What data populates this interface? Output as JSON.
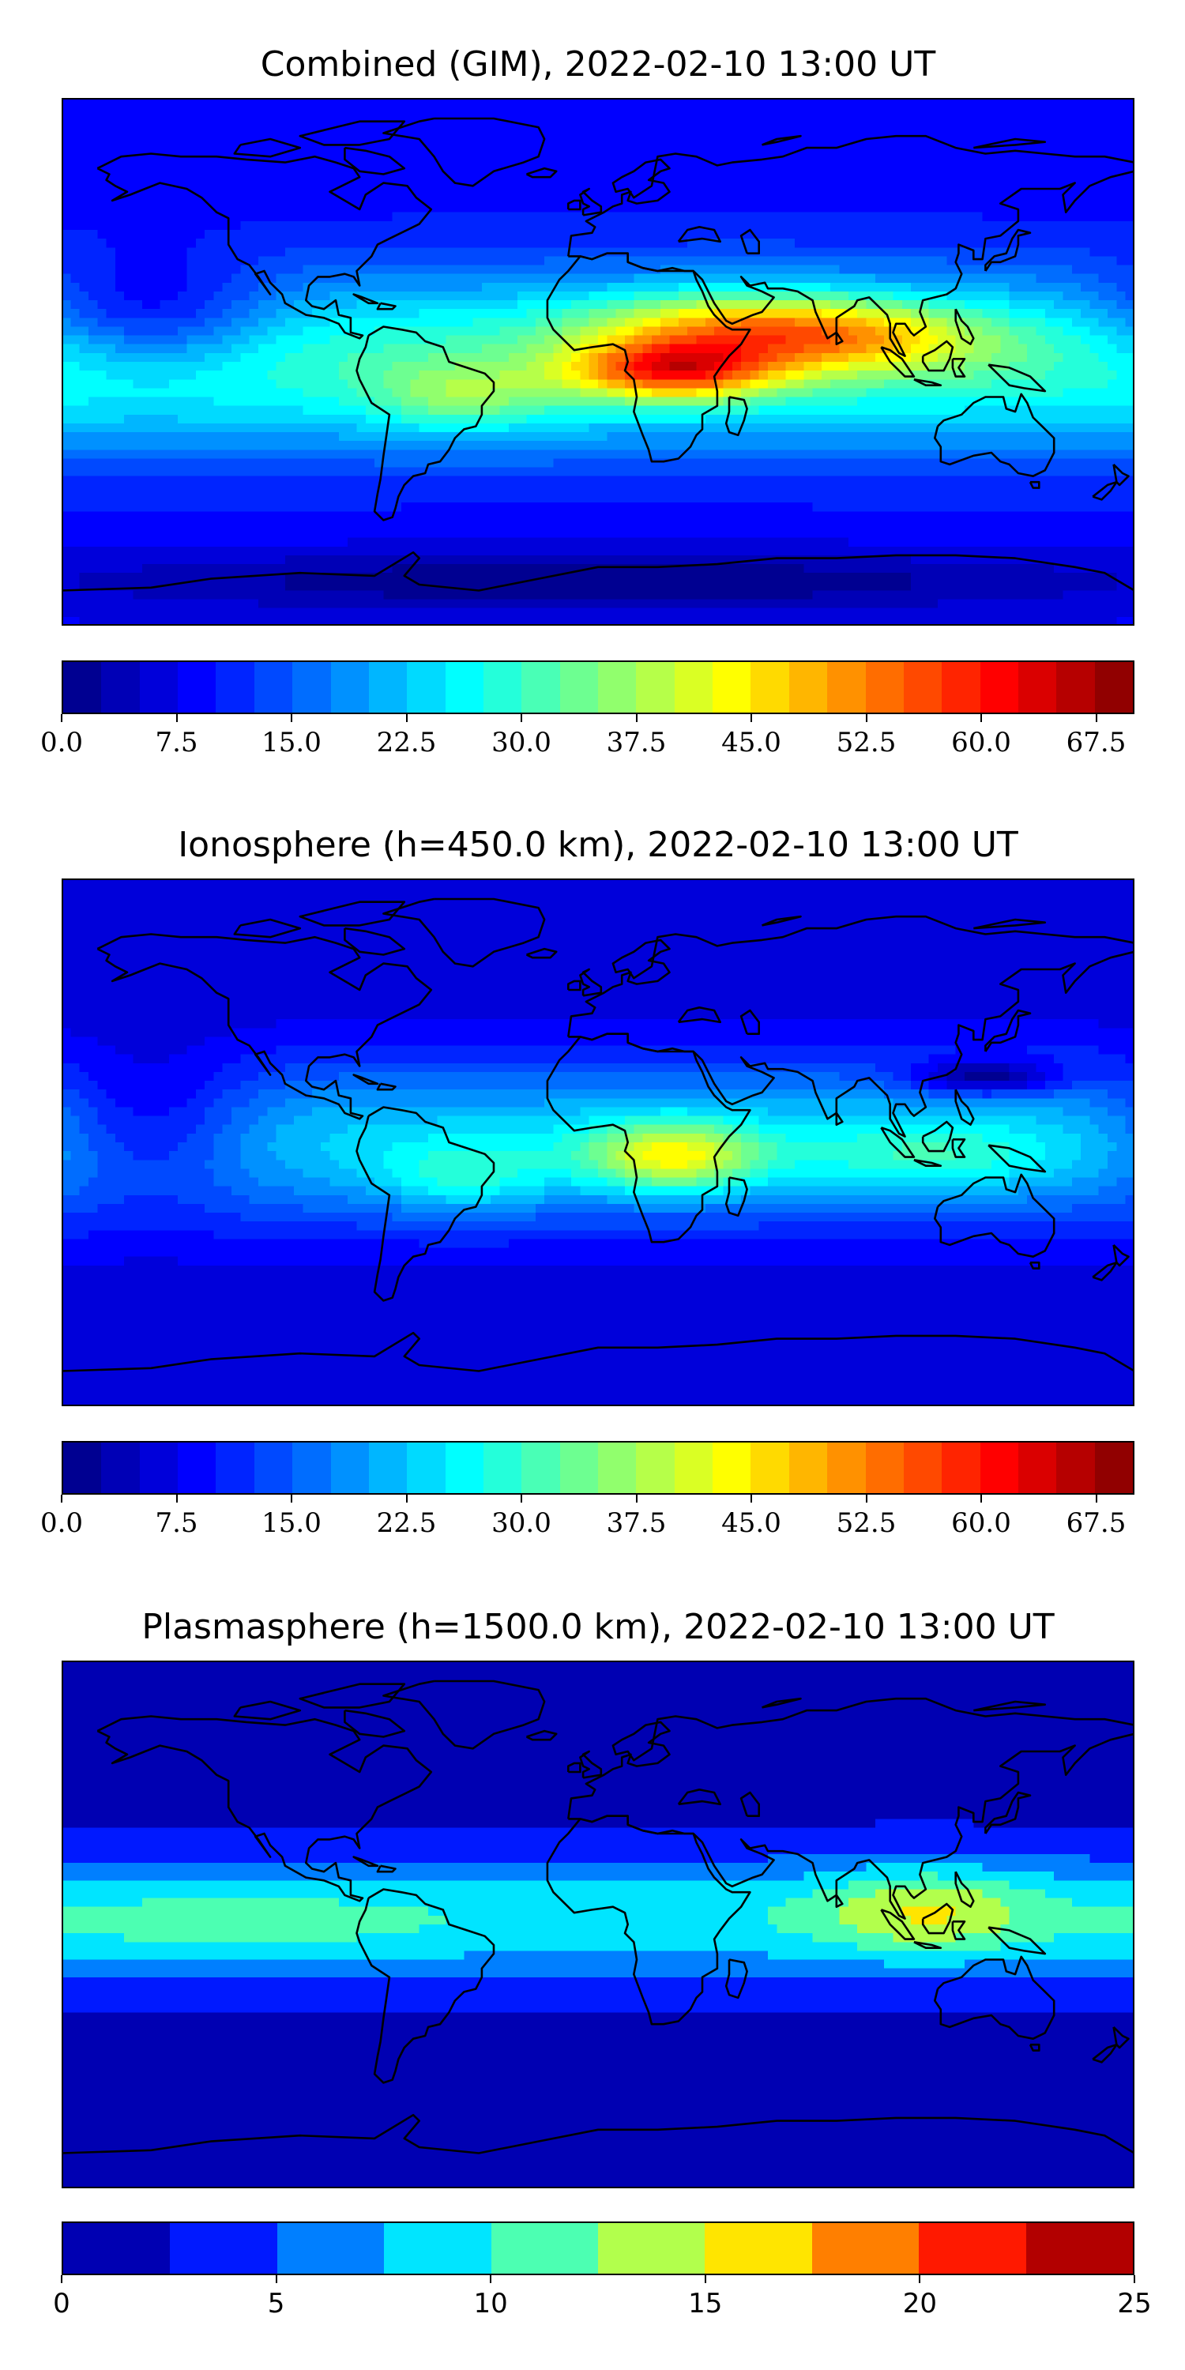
{
  "chart_data": [
    {
      "type": "heatmap",
      "title": "Combined (GIM), 2022-02-10 13:00 UT",
      "colorbar": {
        "range": [
          0,
          70
        ],
        "step": 2.5,
        "ticks": [
          "0.0",
          "7.5",
          "15.0",
          "22.5",
          "30.0",
          "37.5",
          "45.0",
          "52.5",
          "60.0",
          "67.5"
        ],
        "tick_values": [
          0,
          7.5,
          15,
          22.5,
          30,
          37.5,
          45,
          52.5,
          60,
          67.5
        ]
      },
      "map": {
        "peak_value": 60,
        "peak_region": "central Africa",
        "background_min": 5
      }
    },
    {
      "type": "heatmap",
      "title": "Ionosphere  (h=450.0 km), 2022-02-10 13:00 UT",
      "colorbar": {
        "range": [
          0,
          70
        ],
        "step": 2.5,
        "ticks": [
          "0.0",
          "7.5",
          "15.0",
          "22.5",
          "30.0",
          "37.5",
          "45.0",
          "52.5",
          "60.0",
          "67.5"
        ],
        "tick_values": [
          0,
          7.5,
          15,
          22.5,
          30,
          37.5,
          45,
          52.5,
          60,
          67.5
        ]
      },
      "map": {
        "peak_value": 47,
        "peak_region": "central Africa",
        "background_min": 3
      }
    },
    {
      "type": "heatmap",
      "title": "Plasmasphere (h=1500.0 km), 2022-02-10 13:00 UT",
      "colorbar": {
        "range": [
          0,
          25
        ],
        "step": 2.5,
        "ticks": [
          "0",
          "5",
          "10",
          "15",
          "20",
          "25"
        ],
        "tick_values": [
          0,
          5,
          10,
          15,
          20,
          25
        ]
      },
      "map": {
        "peak_value": 16,
        "peak_region": "Southeast Asia",
        "background_min": 1
      }
    }
  ],
  "colors": {
    "jet_stops": [
      "#00007f",
      "#0000ff",
      "#007fff",
      "#00ffff",
      "#7fff7f",
      "#ffff00",
      "#ff7f00",
      "#ff0000",
      "#7f0000"
    ],
    "coastline": "#000000"
  }
}
